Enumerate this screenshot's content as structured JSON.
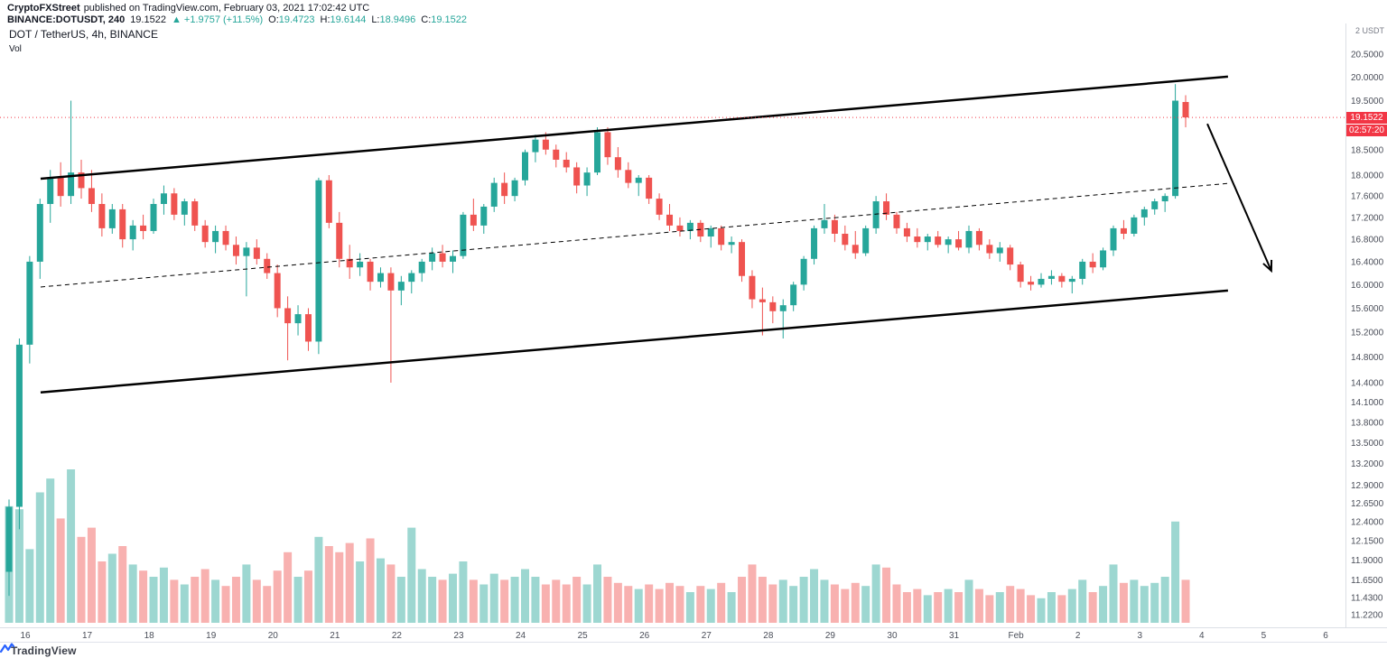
{
  "attribution": {
    "author": "CryptoFXStreet",
    "publish_text": "published on TradingView.com, February 03, 2021 17:02:42 UTC",
    "symbol_line": {
      "symbol": "BINANCE:DOTUSDT, 240",
      "last": "19.1522",
      "change": "▲ +1.9757 (+11.5%)",
      "ohlc": [
        {
          "label": "O:",
          "value": "19.4723"
        },
        {
          "label": "H:",
          "value": "19.6144"
        },
        {
          "label": "L:",
          "value": "18.9496"
        },
        {
          "label": "C:",
          "value": "19.1522"
        }
      ]
    }
  },
  "chart_overlay": {
    "title": "DOT / TetherUS, 4h, BINANCE",
    "indicator": "Vol"
  },
  "axis_header": "2 USDT",
  "price_badge": {
    "price": "19.1522",
    "countdown": "02:57:20"
  },
  "footer": {
    "brand": "TradingView"
  },
  "colors": {
    "up": "#26a69a",
    "down": "#ef5350",
    "up_volume": "rgba(38,166,154,0.45)",
    "down_volume": "rgba(239,83,80,0.45)",
    "accent_red": "#f23645",
    "axis_text": "#4a4e59",
    "separator": "#dcdfe5",
    "channel": "#000000"
  },
  "chart_data": {
    "type": "candlestick",
    "symbol": "DOT/USDT",
    "exchange": "BINANCE",
    "interval": "4h",
    "scale": "log",
    "visible_price_range": [
      11.22,
      20.5
    ],
    "grid": false,
    "last_price": 19.1522,
    "y_ticks": [
      "20.5000",
      "20.0000",
      "19.5000",
      "18.5000",
      "18.0000",
      "17.6000",
      "17.2000",
      "16.8000",
      "16.4000",
      "16.0000",
      "15.6000",
      "15.2000",
      "14.8000",
      "14.4000",
      "14.1000",
      "13.8000",
      "13.5000",
      "13.2000",
      "12.9000",
      "12.6500",
      "12.4000",
      "12.1500",
      "11.9000",
      "11.6500",
      "11.4300",
      "11.2200"
    ],
    "x_ticks": [
      "16",
      "17",
      "18",
      "19",
      "20",
      "21",
      "22",
      "23",
      "24",
      "25",
      "26",
      "27",
      "28",
      "29",
      "30",
      "31",
      "Feb",
      "2",
      "3",
      "4",
      "5",
      "6"
    ],
    "candles": [
      [
        11.75,
        12.7,
        11.45,
        12.6
      ],
      [
        12.6,
        15.1,
        12.3,
        15.0
      ],
      [
        15.0,
        16.5,
        14.7,
        16.4
      ],
      [
        16.4,
        17.55,
        16.1,
        17.45
      ],
      [
        17.45,
        18.1,
        17.1,
        17.95
      ],
      [
        17.95,
        18.25,
        17.4,
        17.6
      ],
      [
        17.6,
        19.5,
        17.45,
        18.05
      ],
      [
        18.05,
        18.3,
        17.55,
        17.75
      ],
      [
        17.75,
        18.1,
        17.3,
        17.45
      ],
      [
        17.45,
        17.65,
        16.85,
        17.0
      ],
      [
        17.0,
        17.45,
        16.9,
        17.35
      ],
      [
        17.35,
        17.45,
        16.65,
        16.8
      ],
      [
        16.8,
        17.15,
        16.6,
        17.05
      ],
      [
        17.05,
        17.25,
        16.8,
        16.95
      ],
      [
        16.95,
        17.55,
        16.9,
        17.45
      ],
      [
        17.45,
        17.8,
        17.25,
        17.65
      ],
      [
        17.65,
        17.75,
        17.15,
        17.25
      ],
      [
        17.25,
        17.55,
        17.05,
        17.5
      ],
      [
        17.5,
        17.55,
        16.95,
        17.05
      ],
      [
        17.05,
        17.15,
        16.65,
        16.75
      ],
      [
        16.75,
        17.05,
        16.55,
        16.95
      ],
      [
        16.95,
        17.05,
        16.6,
        16.7
      ],
      [
        16.7,
        16.85,
        16.35,
        16.5
      ],
      [
        16.5,
        16.75,
        15.8,
        16.65
      ],
      [
        16.65,
        16.8,
        16.35,
        16.45
      ],
      [
        16.45,
        16.55,
        16.1,
        16.2
      ],
      [
        16.2,
        16.35,
        15.45,
        15.6
      ],
      [
        15.6,
        15.8,
        14.75,
        15.35
      ],
      [
        15.35,
        15.65,
        15.15,
        15.5
      ],
      [
        15.5,
        15.6,
        14.9,
        15.05
      ],
      [
        15.05,
        17.95,
        14.85,
        17.9
      ],
      [
        17.9,
        18.0,
        17.0,
        17.1
      ],
      [
        17.1,
        17.3,
        16.3,
        16.45
      ],
      [
        16.45,
        16.7,
        16.1,
        16.3
      ],
      [
        16.3,
        16.55,
        16.15,
        16.4
      ],
      [
        16.4,
        16.45,
        15.9,
        16.05
      ],
      [
        16.05,
        16.3,
        15.95,
        16.2
      ],
      [
        16.2,
        16.3,
        14.4,
        15.9
      ],
      [
        15.9,
        16.15,
        15.65,
        16.05
      ],
      [
        16.05,
        16.25,
        15.85,
        16.2
      ],
      [
        16.2,
        16.45,
        16.05,
        16.4
      ],
      [
        16.4,
        16.65,
        16.25,
        16.55
      ],
      [
        16.55,
        16.7,
        16.3,
        16.4
      ],
      [
        16.4,
        16.6,
        16.2,
        16.5
      ],
      [
        16.5,
        17.3,
        16.45,
        17.25
      ],
      [
        17.25,
        17.55,
        16.95,
        17.05
      ],
      [
        17.05,
        17.45,
        16.9,
        17.4
      ],
      [
        17.4,
        17.95,
        17.3,
        17.85
      ],
      [
        17.85,
        18.05,
        17.45,
        17.6
      ],
      [
        17.6,
        17.95,
        17.5,
        17.9
      ],
      [
        17.9,
        18.5,
        17.8,
        18.45
      ],
      [
        18.45,
        18.8,
        18.25,
        18.7
      ],
      [
        18.7,
        18.85,
        18.4,
        18.5
      ],
      [
        18.5,
        18.6,
        18.15,
        18.3
      ],
      [
        18.3,
        18.45,
        18.05,
        18.15
      ],
      [
        18.15,
        18.25,
        17.65,
        17.8
      ],
      [
        17.8,
        18.15,
        17.6,
        18.05
      ],
      [
        18.05,
        18.95,
        18.0,
        18.85
      ],
      [
        18.85,
        18.95,
        18.2,
        18.35
      ],
      [
        18.35,
        18.55,
        17.95,
        18.1
      ],
      [
        18.1,
        18.25,
        17.75,
        17.85
      ],
      [
        17.85,
        18.0,
        17.6,
        17.95
      ],
      [
        17.95,
        18.0,
        17.45,
        17.55
      ],
      [
        17.55,
        17.65,
        17.15,
        17.25
      ],
      [
        17.25,
        17.45,
        16.95,
        17.05
      ],
      [
        17.05,
        17.2,
        16.85,
        16.95
      ],
      [
        16.95,
        17.15,
        16.8,
        17.1
      ],
      [
        17.1,
        17.15,
        16.75,
        16.85
      ],
      [
        16.85,
        17.05,
        16.65,
        17.0
      ],
      [
        17.0,
        17.05,
        16.6,
        16.7
      ],
      [
        16.7,
        16.85,
        16.55,
        16.75
      ],
      [
        16.75,
        16.8,
        16.05,
        16.15
      ],
      [
        16.15,
        16.25,
        15.6,
        15.75
      ],
      [
        15.75,
        15.95,
        15.15,
        15.7
      ],
      [
        15.7,
        15.8,
        15.35,
        15.55
      ],
      [
        15.55,
        15.75,
        15.1,
        15.65
      ],
      [
        15.65,
        16.05,
        15.55,
        16.0
      ],
      [
        16.0,
        16.5,
        15.9,
        16.45
      ],
      [
        16.45,
        17.05,
        16.35,
        17.0
      ],
      [
        17.0,
        17.45,
        16.9,
        17.15
      ],
      [
        17.15,
        17.25,
        16.75,
        16.9
      ],
      [
        16.9,
        17.05,
        16.6,
        16.7
      ],
      [
        16.7,
        16.95,
        16.45,
        16.55
      ],
      [
        16.55,
        17.05,
        16.5,
        17.0
      ],
      [
        17.0,
        17.6,
        16.9,
        17.5
      ],
      [
        17.5,
        17.65,
        17.15,
        17.25
      ],
      [
        17.25,
        17.3,
        16.9,
        17.0
      ],
      [
        17.0,
        17.1,
        16.75,
        16.85
      ],
      [
        16.85,
        17.0,
        16.65,
        16.75
      ],
      [
        16.75,
        16.9,
        16.6,
        16.85
      ],
      [
        16.85,
        16.95,
        16.65,
        16.7
      ],
      [
        16.7,
        16.85,
        16.55,
        16.8
      ],
      [
        16.8,
        16.95,
        16.6,
        16.65
      ],
      [
        16.65,
        17.05,
        16.55,
        16.95
      ],
      [
        16.95,
        17.0,
        16.6,
        16.7
      ],
      [
        16.7,
        16.8,
        16.45,
        16.55
      ],
      [
        16.55,
        16.75,
        16.4,
        16.65
      ],
      [
        16.65,
        16.7,
        16.25,
        16.35
      ],
      [
        16.35,
        16.4,
        15.95,
        16.05
      ],
      [
        16.05,
        16.15,
        15.9,
        16.0
      ],
      [
        16.0,
        16.2,
        15.95,
        16.1
      ],
      [
        16.1,
        16.25,
        16.0,
        16.15
      ],
      [
        16.15,
        16.2,
        15.95,
        16.05
      ],
      [
        16.05,
        16.15,
        15.85,
        16.1
      ],
      [
        16.1,
        16.45,
        16.0,
        16.4
      ],
      [
        16.4,
        16.55,
        16.2,
        16.3
      ],
      [
        16.3,
        16.65,
        16.25,
        16.6
      ],
      [
        16.6,
        17.05,
        16.5,
        17.0
      ],
      [
        17.0,
        17.15,
        16.8,
        16.9
      ],
      [
        16.9,
        17.25,
        16.85,
        17.2
      ],
      [
        17.2,
        17.4,
        17.05,
        17.35
      ],
      [
        17.35,
        17.55,
        17.25,
        17.5
      ],
      [
        17.5,
        17.65,
        17.3,
        17.6
      ],
      [
        17.6,
        19.85,
        17.55,
        19.5
      ],
      [
        19.4723,
        19.6144,
        18.9496,
        19.1522
      ]
    ],
    "volume": [
      76,
      74,
      48,
      85,
      94,
      68,
      100,
      56,
      62,
      40,
      45,
      50,
      38,
      34,
      30,
      36,
      28,
      25,
      30,
      35,
      28,
      24,
      30,
      38,
      28,
      24,
      34,
      46,
      30,
      34,
      56,
      50,
      46,
      52,
      40,
      55,
      42,
      38,
      30,
      62,
      35,
      30,
      28,
      32,
      40,
      28,
      25,
      32,
      28,
      30,
      35,
      30,
      25,
      28,
      25,
      30,
      25,
      38,
      30,
      26,
      24,
      22,
      25,
      22,
      26,
      24,
      20,
      24,
      22,
      26,
      20,
      30,
      38,
      30,
      25,
      28,
      24,
      30,
      35,
      28,
      25,
      22,
      26,
      24,
      38,
      36,
      25,
      20,
      22,
      18,
      20,
      22,
      20,
      28,
      22,
      18,
      20,
      24,
      22,
      18,
      16,
      20,
      18,
      22,
      28,
      20,
      24,
      38,
      26,
      28,
      24,
      26,
      30,
      66,
      28
    ],
    "annotations": {
      "channel_upper": {
        "i1": 3.06,
        "p1": 17.93,
        "i2": 118.1,
        "p2": 20.01
      },
      "channel_lower": {
        "i1": 3.06,
        "p1": 14.25,
        "i2": 118.1,
        "p2": 15.9
      },
      "channel_mid_dashed": {
        "i1": 3.06,
        "p1": 15.96,
        "i2": 118.1,
        "p2": 17.84
      },
      "down_arrow": {
        "i1": 116.1,
        "p1": 19.02,
        "i2": 122.3,
        "p2": 16.24
      }
    }
  }
}
